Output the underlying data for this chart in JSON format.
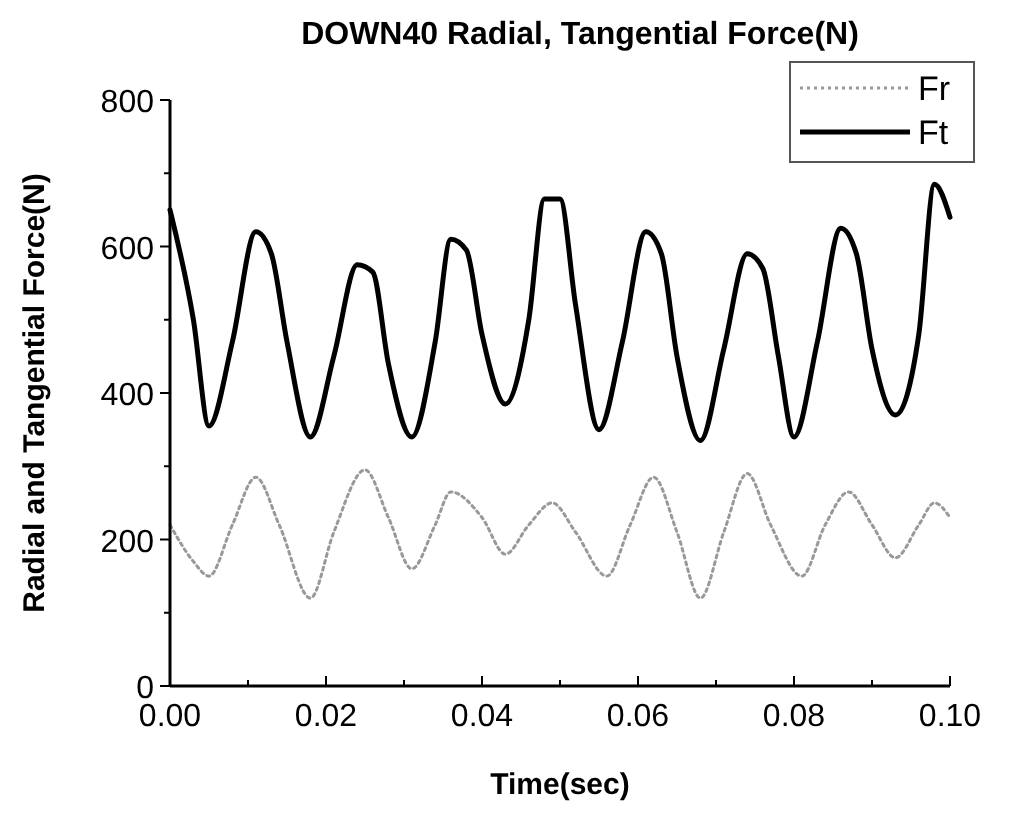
{
  "chart_data": {
    "type": "line",
    "title": "DOWN40 Radial, Tangential Force(N)",
    "xlabel": "Time(sec)",
    "ylabel": "Radial and Tangential Force(N)",
    "xlim": [
      0,
      0.1
    ],
    "ylim": [
      0,
      800
    ],
    "xticks": [
      {
        "value": 0,
        "label": "0.00"
      },
      {
        "value": 0.02,
        "label": "0.02"
      },
      {
        "value": 0.04,
        "label": "0.04"
      },
      {
        "value": 0.06,
        "label": "0.06"
      },
      {
        "value": 0.08,
        "label": "0.08"
      },
      {
        "value": 0.1,
        "label": "0.10"
      }
    ],
    "yticks": [
      0,
      200,
      400,
      600,
      800
    ],
    "legend": "top right",
    "grid": false,
    "series": [
      {
        "name": "Fr",
        "color": "#999999",
        "line_style": "dotted",
        "x": [
          0,
          0.003,
          0.005,
          0.008,
          0.011,
          0.014,
          0.018,
          0.021,
          0.025,
          0.028,
          0.031,
          0.034,
          0.036,
          0.04,
          0.043,
          0.046,
          0.049,
          0.052,
          0.056,
          0.059,
          0.062,
          0.065,
          0.068,
          0.071,
          0.074,
          0.077,
          0.081,
          0.084,
          0.087,
          0.09,
          0.093,
          0.096,
          0.098,
          0.1
        ],
        "values": [
          220,
          170,
          150,
          220,
          285,
          220,
          120,
          210,
          295,
          230,
          160,
          220,
          265,
          230,
          180,
          220,
          250,
          210,
          150,
          220,
          285,
          210,
          120,
          210,
          290,
          220,
          150,
          220,
          265,
          220,
          175,
          220,
          250,
          230
        ]
      },
      {
        "name": "Ft",
        "color": "#000000",
        "line_style": "solid",
        "x": [
          0,
          0.003,
          0.005,
          0.008,
          0.011,
          0.013,
          0.015,
          0.018,
          0.021,
          0.024,
          0.026,
          0.028,
          0.031,
          0.034,
          0.036,
          0.038,
          0.04,
          0.043,
          0.046,
          0.048,
          0.05,
          0.052,
          0.055,
          0.058,
          0.061,
          0.063,
          0.065,
          0.068,
          0.071,
          0.074,
          0.076,
          0.078,
          0.08,
          0.083,
          0.086,
          0.088,
          0.09,
          0.093,
          0.096,
          0.098,
          0.1
        ],
        "values": [
          650,
          500,
          355,
          470,
          620,
          590,
          470,
          340,
          450,
          575,
          565,
          440,
          340,
          470,
          610,
          595,
          480,
          385,
          500,
          665,
          665,
          520,
          350,
          470,
          620,
          590,
          450,
          335,
          460,
          590,
          570,
          450,
          340,
          470,
          625,
          590,
          460,
          370,
          480,
          685,
          640
        ]
      }
    ]
  }
}
